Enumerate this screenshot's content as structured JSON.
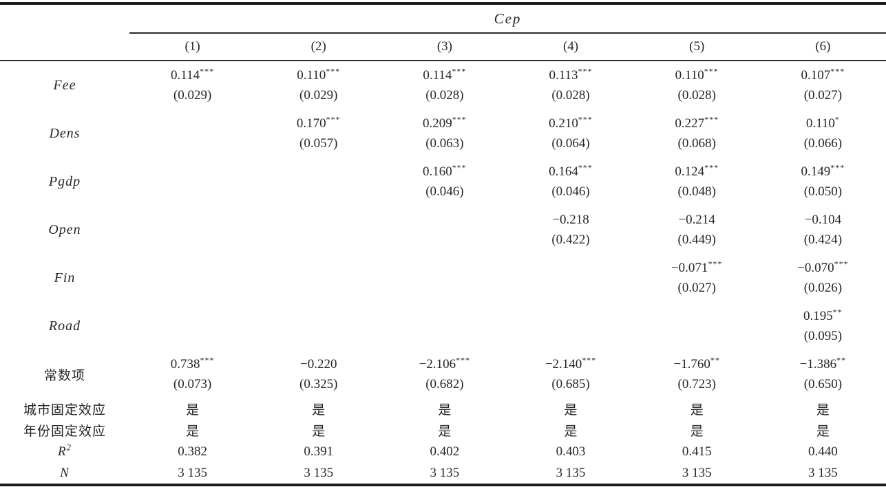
{
  "page": {
    "background": "#ffffff",
    "text_color": "#262626",
    "rule_color": "#1c1c1c"
  },
  "table": {
    "dependent_var_header": "Cep",
    "column_headers": [
      "(1)",
      "(2)",
      "(3)",
      "(4)",
      "(5)",
      "(6)"
    ],
    "rows": [
      {
        "label": "Fee",
        "italic": true,
        "cells": [
          {
            "coef": "0.114",
            "stars": "***",
            "se": "(0.029)"
          },
          {
            "coef": "0.110",
            "stars": "***",
            "se": "(0.029)"
          },
          {
            "coef": "0.114",
            "stars": "***",
            "se": "(0.028)"
          },
          {
            "coef": "0.113",
            "stars": "***",
            "se": "(0.028)"
          },
          {
            "coef": "0.110",
            "stars": "***",
            "se": "(0.028)"
          },
          {
            "coef": "0.107",
            "stars": "***",
            "se": "(0.027)"
          }
        ]
      },
      {
        "label": "Dens",
        "italic": true,
        "cells": [
          null,
          {
            "coef": "0.170",
            "stars": "***",
            "se": "(0.057)"
          },
          {
            "coef": "0.209",
            "stars": "***",
            "se": "(0.063)"
          },
          {
            "coef": "0.210",
            "stars": "***",
            "se": "(0.064)"
          },
          {
            "coef": "0.227",
            "stars": "***",
            "se": "(0.068)"
          },
          {
            "coef": "0.110",
            "stars": "*",
            "se": "(0.066)"
          }
        ]
      },
      {
        "label": "Pgdp",
        "italic": true,
        "cells": [
          null,
          null,
          {
            "coef": "0.160",
            "stars": "***",
            "se": "(0.046)"
          },
          {
            "coef": "0.164",
            "stars": "***",
            "se": "(0.046)"
          },
          {
            "coef": "0.124",
            "stars": "***",
            "se": "(0.048)"
          },
          {
            "coef": "0.149",
            "stars": "***",
            "se": "(0.050)"
          }
        ]
      },
      {
        "label": "Open",
        "italic": true,
        "cells": [
          null,
          null,
          null,
          {
            "coef": "−0.218",
            "stars": "",
            "se": "(0.422)"
          },
          {
            "coef": "−0.214",
            "stars": "",
            "se": "(0.449)"
          },
          {
            "coef": "−0.104",
            "stars": "",
            "se": "(0.424)"
          }
        ]
      },
      {
        "label": "Fin",
        "italic": true,
        "cells": [
          null,
          null,
          null,
          null,
          {
            "coef": "−0.071",
            "stars": "***",
            "se": "(0.027)"
          },
          {
            "coef": "−0.070",
            "stars": "***",
            "se": "(0.026)"
          }
        ]
      },
      {
        "label": "Road",
        "italic": true,
        "cells": [
          null,
          null,
          null,
          null,
          null,
          {
            "coef": "0.195",
            "stars": "**",
            "se": "(0.095)"
          }
        ]
      },
      {
        "label": "常数项",
        "italic": false,
        "cells": [
          {
            "coef": "0.738",
            "stars": "***",
            "se": "(0.073)"
          },
          {
            "coef": "−0.220",
            "stars": "",
            "se": "(0.325)"
          },
          {
            "coef": "−2.106",
            "stars": "***",
            "se": "(0.682)"
          },
          {
            "coef": "−2.140",
            "stars": "***",
            "se": "(0.685)"
          },
          {
            "coef": "−1.760",
            "stars": "**",
            "se": "(0.723)"
          },
          {
            "coef": "−1.386",
            "stars": "**",
            "se": "(0.650)"
          }
        ]
      }
    ],
    "single_rows": [
      {
        "label": "城市固定效应",
        "italic": false,
        "values": [
          "是",
          "是",
          "是",
          "是",
          "是",
          "是"
        ]
      },
      {
        "label": "年份固定效应",
        "italic": false,
        "values": [
          "是",
          "是",
          "是",
          "是",
          "是",
          "是"
        ]
      },
      {
        "label": "R2",
        "label_base": "R",
        "label_sup": "2",
        "italic": true,
        "values": [
          "0.382",
          "0.391",
          "0.402",
          "0.403",
          "0.415",
          "0.440"
        ]
      },
      {
        "label": "N",
        "italic": true,
        "values": [
          "3 135",
          "3 135",
          "3 135",
          "3 135",
          "3 135",
          "3 135"
        ]
      }
    ]
  }
}
